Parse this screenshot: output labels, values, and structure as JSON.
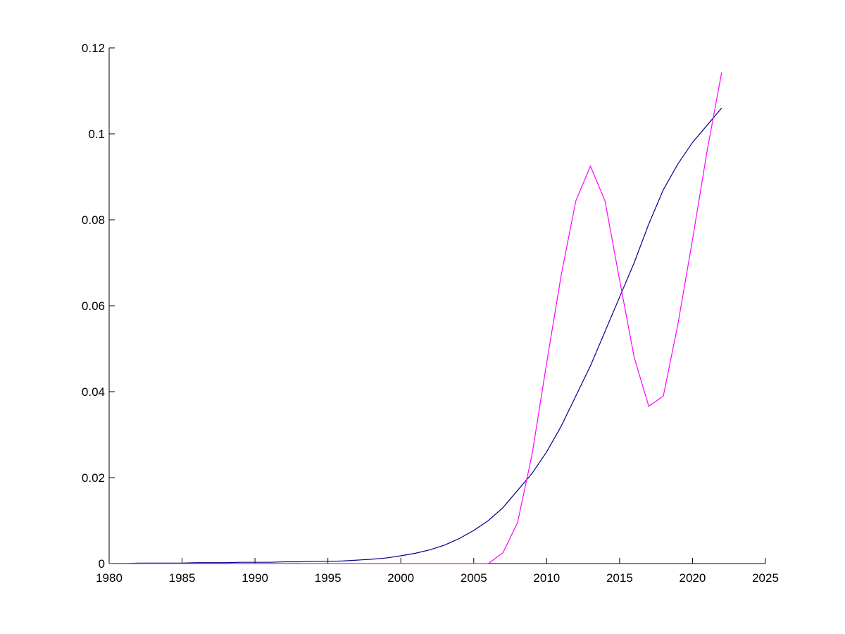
{
  "chart_data": {
    "type": "line",
    "x": [
      1980,
      1981,
      1982,
      1983,
      1984,
      1985,
      1986,
      1987,
      1988,
      1989,
      1990,
      1991,
      1992,
      1993,
      1994,
      1995,
      1996,
      1997,
      1998,
      1999,
      2000,
      2001,
      2002,
      2003,
      2004,
      2005,
      2006,
      2007,
      2008,
      2009,
      2010,
      2011,
      2012,
      2013,
      2014,
      2015,
      2016,
      2017,
      2018,
      2019,
      2020,
      2021,
      2022
    ],
    "series": [
      {
        "color": "#00008b",
        "values": [
          0,
          0,
          0.0001,
          0.0001,
          0.0001,
          0.0001,
          0.0002,
          0.0002,
          0.0002,
          0.0003,
          0.0003,
          0.0003,
          0.0004,
          0.0004,
          0.0005,
          0.0005,
          0.0006,
          0.0008,
          0.001,
          0.0013,
          0.0018,
          0.0024,
          0.0032,
          0.0043,
          0.0058,
          0.0077,
          0.01,
          0.013,
          0.017,
          0.021,
          0.026,
          0.032,
          0.039,
          0.046,
          0.054,
          0.062,
          0.07,
          0.079,
          0.087,
          0.093,
          0.098,
          0.102,
          0.106
        ]
      },
      {
        "color": "#ff00ff",
        "values": [
          0,
          0,
          0,
          0,
          0,
          0,
          0,
          0,
          0,
          0,
          0,
          0,
          0,
          0,
          0,
          0,
          0,
          0,
          0,
          0,
          0,
          0,
          0,
          0,
          0,
          0,
          0,
          0.0025,
          0.0095,
          0.0254,
          0.0467,
          0.0672,
          0.0844,
          0.0925,
          0.0844,
          0.066,
          0.048,
          0.0366,
          0.039,
          0.0557,
          0.0754,
          0.096,
          0.1143
        ]
      }
    ],
    "xlim": [
      1980,
      2025
    ],
    "xticks": [
      1980,
      1985,
      1990,
      1995,
      2000,
      2005,
      2010,
      2015,
      2020,
      2025
    ],
    "ylim": [
      0,
      0.12
    ],
    "yticks": [
      0,
      0.02,
      0.04,
      0.06,
      0.08,
      0.1,
      0.12
    ]
  }
}
